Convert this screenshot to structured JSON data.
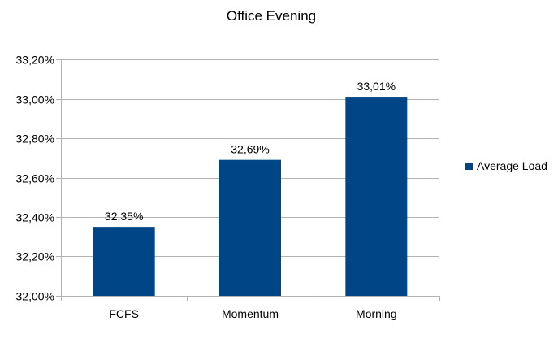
{
  "chart_data": {
    "type": "bar",
    "title": "Office Evening",
    "categories": [
      "FCFS",
      "Momentum",
      "Morning"
    ],
    "series": [
      {
        "name": "Average Load",
        "values": [
          32.35,
          32.69,
          33.01
        ],
        "data_labels": [
          "32,35%",
          "32,69%",
          "33,01%"
        ],
        "color": "#004586"
      }
    ],
    "ylim": [
      32.0,
      33.2
    ],
    "yticks": [
      {
        "value": 32.0,
        "label": "32,00%"
      },
      {
        "value": 32.2,
        "label": "32,20%"
      },
      {
        "value": 32.4,
        "label": "32,40%"
      },
      {
        "value": 32.6,
        "label": "32,60%"
      },
      {
        "value": 32.8,
        "label": "32,80%"
      },
      {
        "value": 33.0,
        "label": "33,00%"
      },
      {
        "value": 33.2,
        "label": "33,20%"
      }
    ],
    "grid": true,
    "legend": "right",
    "axis_color": "#b3b3b3"
  }
}
